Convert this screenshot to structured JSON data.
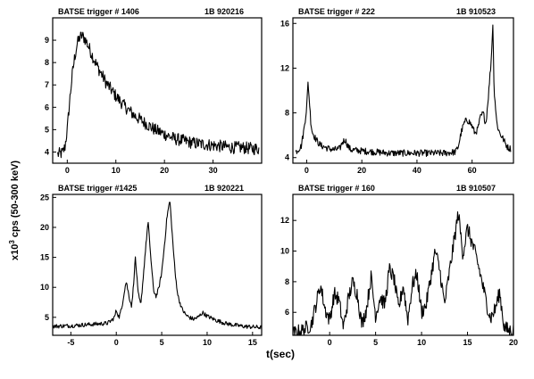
{
  "figure": {
    "ylabel_prefix": "x10",
    "ylabel_exp": "3",
    "ylabel_rest": " cps (50-300 keV)",
    "xlabel": "t(sec)"
  },
  "chart_data": [
    {
      "type": "line",
      "title_left": "BATSE  trigger  # 1406",
      "title_right": "1B  920216",
      "xlim": [
        -3,
        40
      ],
      "ylim": [
        3.5,
        10
      ],
      "xticks": [
        0,
        10,
        20,
        30
      ],
      "yticks": [
        4,
        5,
        6,
        7,
        8,
        9
      ],
      "noise": 0.28,
      "series": [
        {
          "x": [
            -2,
            -1,
            -0.5,
            0,
            0.5,
            1,
            1.5,
            2,
            2.5,
            3,
            3.5,
            4,
            5,
            6,
            7,
            8,
            10,
            12,
            14,
            16,
            18,
            20,
            22,
            24,
            26,
            28,
            30,
            32,
            34,
            36,
            38,
            39.5
          ],
          "y": [
            3.9,
            3.95,
            4.2,
            5.0,
            6.3,
            7.4,
            8.2,
            8.8,
            9.1,
            9.2,
            9.1,
            8.9,
            8.4,
            7.9,
            7.5,
            7.1,
            6.5,
            6.0,
            5.6,
            5.3,
            5.0,
            4.8,
            4.6,
            4.5,
            4.4,
            4.35,
            4.3,
            4.25,
            4.2,
            4.2,
            4.15,
            4.15
          ]
        }
      ]
    },
    {
      "type": "line",
      "title_left": "BATSE  trigger  # 222",
      "title_right": "1B  910523",
      "xlim": [
        -5,
        75
      ],
      "ylim": [
        3.5,
        16.5
      ],
      "xticks": [
        0,
        20,
        40,
        60
      ],
      "yticks": [
        4,
        8,
        12,
        16
      ],
      "noise": 0.3,
      "series": [
        {
          "x": [
            -4,
            -2,
            -1,
            0,
            0.5,
            1,
            1.5,
            2,
            3,
            4,
            5,
            6,
            8,
            10,
            12,
            13,
            14,
            15,
            16,
            20,
            25,
            30,
            35,
            40,
            45,
            50,
            54,
            55,
            56,
            57,
            58,
            59,
            60,
            61,
            62,
            63,
            64,
            65,
            66,
            67,
            67.5,
            68,
            69,
            70,
            71,
            72,
            73,
            74
          ],
          "y": [
            4.5,
            5.0,
            6.5,
            8.5,
            10.8,
            9.0,
            7.2,
            6.3,
            5.8,
            5.4,
            5.1,
            5.0,
            4.8,
            4.7,
            4.8,
            5.4,
            5.6,
            5.0,
            4.7,
            4.6,
            4.5,
            4.4,
            4.4,
            4.4,
            4.4,
            4.4,
            4.5,
            5.0,
            6.2,
            7.0,
            7.4,
            7.2,
            6.8,
            6.2,
            6.5,
            7.6,
            8.0,
            7.0,
            9.8,
            13.0,
            16.0,
            10.0,
            7.0,
            6.2,
            5.8,
            5.3,
            4.9,
            4.8
          ]
        }
      ]
    },
    {
      "type": "line",
      "title_left": "BATSE  trigger  #1425",
      "title_right": "1B  920221",
      "xlim": [
        -7,
        16
      ],
      "ylim": [
        2,
        25.5
      ],
      "xticks": [
        -5,
        0,
        5,
        10,
        15
      ],
      "yticks": [
        5,
        10,
        15,
        20,
        25
      ],
      "noise": 0.35,
      "series": [
        {
          "x": [
            -7,
            -5,
            -3,
            -1,
            -0.5,
            -0.2,
            0,
            0.3,
            0.6,
            0.9,
            1.1,
            1.4,
            1.7,
            1.9,
            2.1,
            2.4,
            2.7,
            2.9,
            3.2,
            3.5,
            3.8,
            4.1,
            4.4,
            4.7,
            5.0,
            5.3,
            5.6,
            5.9,
            6.2,
            6.5,
            6.8,
            7.2,
            7.6,
            8,
            8.5,
            9,
            9.5,
            10,
            11,
            12,
            13,
            14,
            15,
            16
          ],
          "y": [
            3.5,
            3.6,
            3.8,
            4.0,
            4.5,
            5.0,
            6.2,
            5.0,
            6.5,
            9.5,
            11.0,
            8.5,
            6.8,
            10.5,
            15.0,
            9.0,
            7.0,
            10.5,
            16.0,
            21.0,
            15.0,
            9.5,
            8.5,
            10.0,
            12.5,
            17.0,
            22.0,
            24.5,
            18.0,
            12.0,
            8.5,
            6.5,
            5.5,
            5.0,
            4.7,
            5.0,
            5.8,
            5.2,
            4.5,
            4.0,
            3.7,
            3.5,
            3.4,
            3.3
          ]
        }
      ]
    },
    {
      "type": "line",
      "title_left": "BATSE  trigger  # 160",
      "title_right": "1B  910507",
      "xlim": [
        -4,
        20
      ],
      "ylim": [
        4.5,
        13.7
      ],
      "xticks": [
        0,
        5,
        10,
        15,
        20
      ],
      "yticks": [
        6,
        8,
        10,
        12
      ],
      "noise": 0.5,
      "series": [
        {
          "x": [
            -4,
            -3,
            -2,
            -1.5,
            -1,
            -0.5,
            0,
            0.5,
            1,
            1.5,
            2,
            2.5,
            3,
            3.5,
            4,
            4.5,
            5,
            5.5,
            6,
            6.5,
            7,
            7.5,
            8,
            8.5,
            9,
            9.5,
            10,
            10.5,
            11,
            11.5,
            12,
            12.5,
            13,
            13.5,
            14,
            14.5,
            15,
            15.5,
            16,
            16.5,
            17,
            17.5,
            18,
            18.5,
            19,
            19.5,
            20
          ],
          "y": [
            4.6,
            4.8,
            5.2,
            6.5,
            7.8,
            6.2,
            5.5,
            7.2,
            6.8,
            5.0,
            6.8,
            8.0,
            7.2,
            5.2,
            6.2,
            8.3,
            5.8,
            7.0,
            6.5,
            8.8,
            8.2,
            6.2,
            7.8,
            5.5,
            7.8,
            8.5,
            6.0,
            6.5,
            8.3,
            10.0,
            8.7,
            6.5,
            8.5,
            10.5,
            12.5,
            9.8,
            11.5,
            10.5,
            9.5,
            8.2,
            6.8,
            5.6,
            6.2,
            7.3,
            5.0,
            4.8,
            4.8
          ]
        }
      ]
    }
  ]
}
